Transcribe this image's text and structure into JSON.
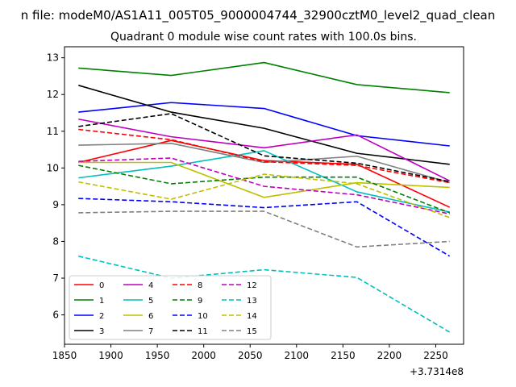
{
  "figure": {
    "suptitle": "n file: modeM0/AS1A11_005T05_9000004744_32900cztM0_level2_quad_clean",
    "title": "Quadrant 0 module wise count rates with 100.0s bins.",
    "x_offset_label": "+3.7314e8"
  },
  "chart_data": {
    "type": "line",
    "title": "Quadrant 0 module wise count rates with 100.0s bins.",
    "xlabel": "",
    "ylabel": "",
    "x_offset": 373140000,
    "x": [
      1865,
      1965,
      2065,
      2165,
      2265
    ],
    "xlim": [
      1850,
      2280
    ],
    "ylim": [
      5.2,
      13.3
    ],
    "xticks": [
      1850,
      1900,
      1950,
      2000,
      2050,
      2100,
      2150,
      2200,
      2250
    ],
    "yticks": [
      6,
      7,
      8,
      9,
      10,
      11,
      12,
      13
    ],
    "grid": false,
    "legend": {
      "placement": "lower-left",
      "columns": 4
    },
    "series": [
      {
        "name": "0",
        "color": "#ff0000",
        "dash": "solid",
        "values": [
          10.15,
          10.75,
          10.2,
          10.1,
          8.93
        ]
      },
      {
        "name": "1",
        "color": "#008000",
        "dash": "solid",
        "values": [
          12.72,
          12.52,
          12.87,
          12.27,
          12.05
        ]
      },
      {
        "name": "2",
        "color": "#0000ff",
        "dash": "solid",
        "values": [
          11.52,
          11.78,
          11.62,
          10.88,
          10.6
        ]
      },
      {
        "name": "3",
        "color": "#000000",
        "dash": "solid",
        "values": [
          12.25,
          11.52,
          11.08,
          10.4,
          10.1
        ]
      },
      {
        "name": "4",
        "color": "#c000c0",
        "dash": "solid",
        "values": [
          11.33,
          10.85,
          10.55,
          10.9,
          9.65
        ]
      },
      {
        "name": "5",
        "color": "#00bfbf",
        "dash": "solid",
        "values": [
          9.73,
          10.05,
          10.47,
          9.35,
          8.8
        ]
      },
      {
        "name": "6",
        "color": "#bfbf00",
        "dash": "solid",
        "values": [
          10.15,
          10.15,
          9.2,
          9.6,
          9.47
        ]
      },
      {
        "name": "7",
        "color": "#808080",
        "dash": "solid",
        "values": [
          10.62,
          10.67,
          10.15,
          10.32,
          9.6
        ]
      },
      {
        "name": "8",
        "color": "#ff0000",
        "dash": "dashed",
        "values": [
          11.05,
          10.77,
          10.17,
          10.07,
          9.6
        ]
      },
      {
        "name": "9",
        "color": "#008000",
        "dash": "dashed",
        "values": [
          10.07,
          9.57,
          9.75,
          9.75,
          8.78
        ]
      },
      {
        "name": "10",
        "color": "#0000ff",
        "dash": "dashed",
        "values": [
          9.17,
          9.08,
          8.92,
          9.08,
          7.6
        ]
      },
      {
        "name": "11",
        "color": "#000000",
        "dash": "dashed",
        "values": [
          11.13,
          11.48,
          10.33,
          10.13,
          9.63
        ]
      },
      {
        "name": "12",
        "color": "#c000c0",
        "dash": "dashed",
        "values": [
          10.18,
          10.27,
          9.5,
          9.27,
          8.75
        ]
      },
      {
        "name": "13",
        "color": "#00bfbf",
        "dash": "dashed",
        "values": [
          7.6,
          7.0,
          7.23,
          7.02,
          5.53
        ]
      },
      {
        "name": "14",
        "color": "#bfbf00",
        "dash": "dashed",
        "values": [
          9.62,
          9.15,
          9.83,
          9.57,
          8.65
        ]
      },
      {
        "name": "15",
        "color": "#808080",
        "dash": "dashed",
        "values": [
          8.78,
          8.82,
          8.82,
          7.85,
          8.0
        ]
      }
    ]
  }
}
